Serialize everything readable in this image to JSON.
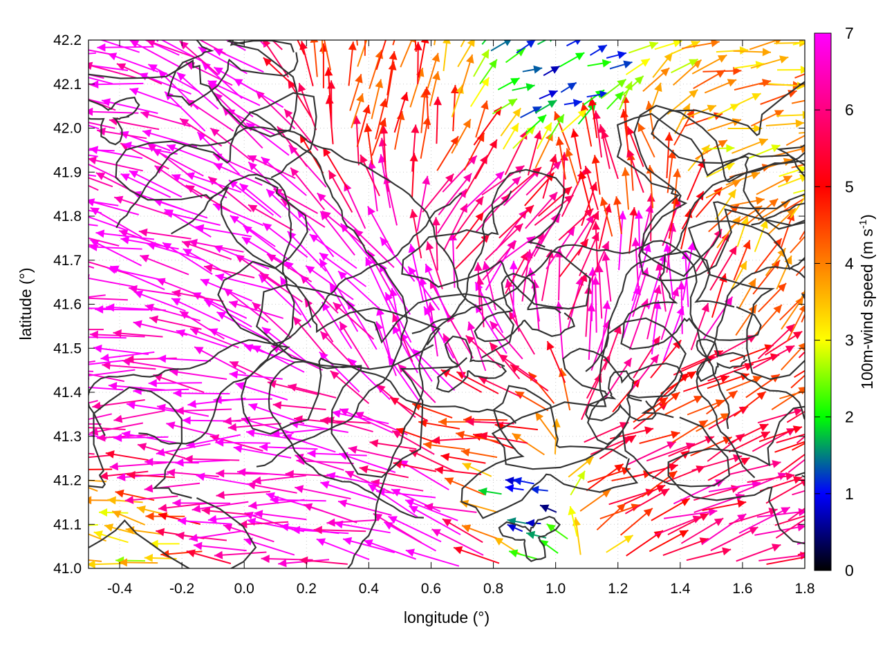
{
  "chart_data": {
    "type": "vector-field",
    "title": "",
    "xlabel": "longitude (°)",
    "ylabel": "latitude (°)",
    "xlim": [
      -0.5,
      1.8
    ],
    "ylim": [
      41.0,
      42.2
    ],
    "x_ticks": [
      -0.4,
      -0.2,
      0.0,
      0.2,
      0.4,
      0.6,
      0.8,
      1.0,
      1.2,
      1.4,
      1.6,
      1.8
    ],
    "x_tick_labels": [
      "-0.4",
      "-0.2",
      "0.0",
      "0.2",
      "0.4",
      "0.6",
      "0.8",
      "1.0",
      "1.2",
      "1.4",
      "1.6",
      "1.8"
    ],
    "y_ticks": [
      41.0,
      41.1,
      41.2,
      41.3,
      41.4,
      41.5,
      41.6,
      41.7,
      41.8,
      41.9,
      42.0,
      42.1,
      42.2
    ],
    "y_tick_labels": [
      "41.0",
      "41.1",
      "41.2",
      "41.3",
      "41.4",
      "41.5",
      "41.6",
      "41.7",
      "41.8",
      "41.9",
      "42.0",
      "42.1",
      "42.2"
    ],
    "grid": true,
    "colorbar": {
      "label_main": "100m-wind speed (m s",
      "label_sup": "-1",
      "label_close": ")",
      "range": [
        0,
        7
      ],
      "ticks": [
        0,
        1,
        2,
        3,
        4,
        5,
        6,
        7
      ],
      "tick_labels": [
        "0",
        "1",
        "2",
        "3",
        "4",
        "5",
        "6",
        "7"
      ],
      "colors": [
        "#000000",
        "#0000ff",
        "#00ff00",
        "#ffff00",
        "#ff8000",
        "#ff0000",
        "#ff00ff"
      ]
    },
    "contour_color": "#333333",
    "wind_zones_note": "",
    "wind_zones": [
      {
        "lon": -0.45,
        "lat": 41.45,
        "u": -6.0,
        "v": 0.0,
        "speed": 7.0
      },
      {
        "lon": -0.45,
        "lat": 41.85,
        "u": -5.5,
        "v": 1.5,
        "speed": 7.0
      },
      {
        "lon": -0.45,
        "lat": 42.15,
        "u": -6.0,
        "v": 0.8,
        "speed": 7.0
      },
      {
        "lon": -0.45,
        "lat": 41.05,
        "u": -3.0,
        "v": 0.5,
        "speed": 3.0
      },
      {
        "lon": 0.0,
        "lat": 41.25,
        "u": -6.5,
        "v": 0.2,
        "speed": 7.0
      },
      {
        "lon": 0.0,
        "lat": 41.65,
        "u": -5.0,
        "v": 2.0,
        "speed": 7.0
      },
      {
        "lon": 0.0,
        "lat": 42.0,
        "u": -4.0,
        "v": 2.5,
        "speed": 7.0
      },
      {
        "lon": 0.3,
        "lat": 41.2,
        "u": -6.0,
        "v": 0.5,
        "speed": 7.0
      },
      {
        "lon": 0.35,
        "lat": 41.6,
        "u": -3.5,
        "v": 4.0,
        "speed": 7.0
      },
      {
        "lon": 0.4,
        "lat": 42.05,
        "u": 0.5,
        "v": 3.0,
        "speed": 4.5
      },
      {
        "lon": 0.6,
        "lat": 41.5,
        "u": -2.0,
        "v": 5.0,
        "speed": 7.0
      },
      {
        "lon": 0.65,
        "lat": 41.1,
        "u": -4.0,
        "v": 1.5,
        "speed": 7.0
      },
      {
        "lon": 0.8,
        "lat": 41.3,
        "u": -3.0,
        "v": 0.5,
        "speed": 5.0
      },
      {
        "lon": 0.8,
        "lat": 41.75,
        "u": 3.0,
        "v": 3.0,
        "speed": 6.0
      },
      {
        "lon": 0.95,
        "lat": 41.15,
        "u": -1.5,
        "v": 0.3,
        "speed": 1.0
      },
      {
        "lon": 1.0,
        "lat": 42.1,
        "u": 1.5,
        "v": 0.5,
        "speed": 1.5
      },
      {
        "lon": 1.15,
        "lat": 41.2,
        "u": 3.5,
        "v": 1.5,
        "speed": 5.5
      },
      {
        "lon": 1.2,
        "lat": 41.9,
        "u": -1.0,
        "v": 3.0,
        "speed": 5.0
      },
      {
        "lon": 1.3,
        "lat": 41.55,
        "u": 0.5,
        "v": 5.0,
        "speed": 7.0
      },
      {
        "lon": 1.5,
        "lat": 41.1,
        "u": 4.0,
        "v": 1.5,
        "speed": 6.0
      },
      {
        "lon": 1.5,
        "lat": 41.4,
        "u": 3.5,
        "v": 1.5,
        "speed": 5.0
      },
      {
        "lon": 1.6,
        "lat": 41.95,
        "u": 3.5,
        "v": 0.8,
        "speed": 3.5
      },
      {
        "lon": 1.7,
        "lat": 42.15,
        "u": 3.0,
        "v": 0.5,
        "speed": 3.8
      },
      {
        "lon": 1.7,
        "lat": 41.65,
        "u": 1.5,
        "v": 2.5,
        "speed": 4.0
      }
    ]
  }
}
